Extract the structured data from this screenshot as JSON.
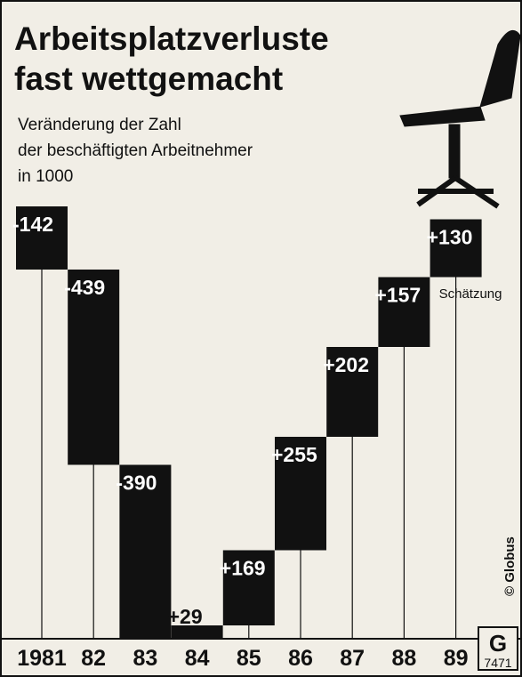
{
  "chart_data": {
    "type": "waterfall",
    "title": [
      "Arbeitsplatzverluste",
      "fast wettgemacht"
    ],
    "subtitle": [
      "Veränderung der Zahl",
      "der beschäftigten Arbeitnehmer",
      "in 1000"
    ],
    "categories": [
      "1981",
      "82",
      "83",
      "84",
      "85",
      "86",
      "87",
      "88",
      "89"
    ],
    "values": [
      -142,
      -439,
      -390,
      29,
      169,
      255,
      202,
      157,
      130
    ],
    "value_labels": [
      "-142",
      "-439",
      "-390",
      "+29",
      "+169",
      "+255",
      "+202",
      "+157",
      "+130"
    ],
    "color": "#111111",
    "annotation": "Schätzung",
    "source": "© Globus",
    "code": "7471"
  }
}
